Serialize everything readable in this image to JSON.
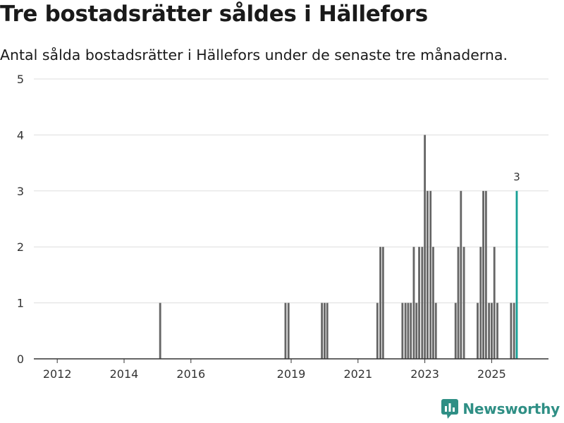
{
  "title": "Tre bostadsrätter såldes i Hällefors",
  "subtitle": "Antal sålda bostadsrätter i Hällefors under de senaste tre månaderna.",
  "brand": "Newsworthy",
  "colors": {
    "bar": "#666666",
    "highlight": "#17a096",
    "grid": "#dddddd",
    "axis": "#333333",
    "brand": "#2f8f85"
  },
  "chart_data": {
    "type": "bar",
    "title": "Tre bostadsrätter såldes i Hällefors",
    "subtitle": "Antal sålda bostadsrätter i Hällefors under de senaste tre månaderna.",
    "xlabel": "",
    "ylabel": "",
    "ylim": [
      0,
      5
    ],
    "yticks": [
      0,
      1,
      2,
      3,
      4,
      5
    ],
    "xlim": [
      2011.3,
      2026.7
    ],
    "xticks": [
      2012,
      2014,
      2016,
      2019,
      2021,
      2023,
      2025
    ],
    "xticklabels": [
      "2012",
      "2014",
      "2016",
      "2019",
      "2021",
      "2023",
      "2025"
    ],
    "grid": true,
    "bar_width_years": 0.06,
    "x": [
      2015.08,
      2018.83,
      2018.92,
      2019.92,
      2020.0,
      2020.08,
      2021.58,
      2021.67,
      2021.75,
      2022.33,
      2022.42,
      2022.5,
      2022.58,
      2022.67,
      2022.75,
      2022.83,
      2022.92,
      2023.0,
      2023.08,
      2023.17,
      2023.25,
      2023.33,
      2023.92,
      2024.0,
      2024.08,
      2024.17,
      2024.58,
      2024.67,
      2024.75,
      2024.83,
      2024.92,
      2025.0,
      2025.08,
      2025.17,
      2025.58,
      2025.67,
      2025.75
    ],
    "values": [
      1,
      1,
      1,
      1,
      1,
      1,
      1,
      2,
      2,
      1,
      1,
      1,
      1,
      2,
      1,
      2,
      2,
      4,
      3,
      3,
      2,
      1,
      1,
      2,
      3,
      2,
      1,
      2,
      3,
      3,
      1,
      1,
      2,
      1,
      1,
      1,
      3
    ],
    "highlight_index": 36,
    "annotation": {
      "label": "3",
      "target_index": 36
    }
  }
}
